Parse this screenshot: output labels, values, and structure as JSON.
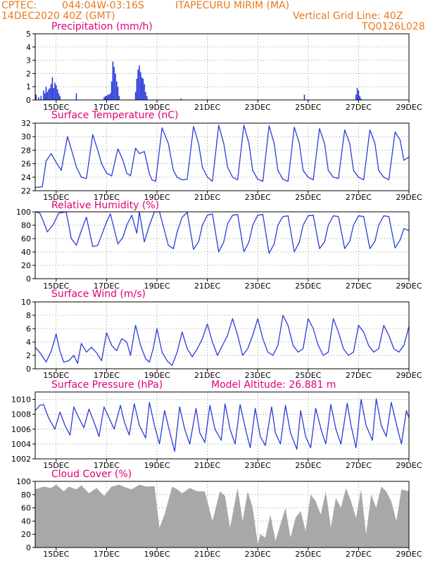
{
  "header": {
    "source": "CPTEC:",
    "coords": "044:04W-03:16S",
    "station": "ITAPECURU MIRIM (MA)",
    "datetime": "14DEC2020 40Z (GMT)",
    "grid_note": "Vertical Grid Line: 40Z",
    "model": "TQ0126L028"
  },
  "colors": {
    "header": "#e87a1e",
    "title": "#e0007a",
    "series": "#2a3cd9",
    "cloud": "#a8a8a8",
    "grid": "#9a9a9a"
  },
  "x_axis": {
    "start_day": 14.167,
    "end_day": 29.0,
    "ticks": [
      {
        "day": 15,
        "label": "15DEC"
      },
      {
        "day": 17,
        "label": "17DEC"
      },
      {
        "day": 19,
        "label": "19DEC"
      },
      {
        "day": 21,
        "label": "21DEC"
      },
      {
        "day": 23,
        "label": "23DEC"
      },
      {
        "day": 25,
        "label": "25DEC"
      },
      {
        "day": 27,
        "label": "27DEC"
      },
      {
        "day": 29,
        "label": "29DEC"
      }
    ]
  },
  "chart_data": [
    {
      "id": "precip",
      "type": "bar",
      "title": "Precipitation (mm/h)",
      "ylim": [
        0,
        5
      ],
      "yticks": [
        0,
        1,
        2,
        3,
        4,
        5
      ],
      "grid": true,
      "x": [
        14.2,
        14.3,
        14.4,
        14.5,
        14.55,
        14.6,
        14.65,
        14.7,
        14.75,
        14.8,
        14.85,
        14.9,
        14.95,
        15.0,
        15.05,
        15.1,
        15.15,
        15.8,
        16.9,
        16.95,
        17.0,
        17.05,
        17.1,
        17.15,
        17.2,
        17.25,
        17.3,
        17.35,
        17.4,
        17.45,
        17.5,
        18.15,
        18.2,
        18.25,
        18.3,
        18.35,
        18.4,
        18.45,
        18.5,
        18.55,
        18.6,
        19.95,
        24.85,
        26.9,
        26.95,
        27.0,
        27.05,
        27.1
      ],
      "values": [
        0.4,
        0.2,
        0.3,
        0.7,
        0.5,
        1.0,
        0.6,
        0.8,
        0.9,
        1.2,
        1.7,
        0.9,
        1.3,
        1.1,
        0.8,
        0.5,
        0.3,
        0.5,
        0.2,
        0.3,
        0.3,
        0.4,
        0.4,
        0.5,
        1.4,
        2.9,
        2.5,
        2.0,
        1.4,
        1.0,
        0.3,
        0.6,
        1.6,
        2.3,
        2.6,
        2.1,
        1.7,
        1.6,
        1.2,
        0.6,
        0.3,
        0.1,
        0.4,
        0.4,
        0.9,
        0.7,
        0.3,
        0.1
      ]
    },
    {
      "id": "temp",
      "type": "line",
      "title": "Surface Temperature (nC)",
      "ylim": [
        22,
        32
      ],
      "yticks": [
        22,
        24,
        26,
        28,
        30,
        32
      ],
      "grid": true,
      "x": [
        14.17,
        14.3,
        14.45,
        14.6,
        14.8,
        15.0,
        15.2,
        15.45,
        15.65,
        15.8,
        16.0,
        16.2,
        16.45,
        16.65,
        16.8,
        17.0,
        17.2,
        17.45,
        17.65,
        17.8,
        17.95,
        18.15,
        18.3,
        18.5,
        18.7,
        18.8,
        18.95,
        19.2,
        19.45,
        19.65,
        19.8,
        20.0,
        20.2,
        20.45,
        20.65,
        20.8,
        21.0,
        21.2,
        21.45,
        21.65,
        21.8,
        22.0,
        22.2,
        22.45,
        22.65,
        22.8,
        23.0,
        23.2,
        23.45,
        23.65,
        23.8,
        24.0,
        24.2,
        24.45,
        24.65,
        24.8,
        25.0,
        25.2,
        25.45,
        25.65,
        25.8,
        26.0,
        26.2,
        26.45,
        26.65,
        26.8,
        27.0,
        27.2,
        27.45,
        27.65,
        27.8,
        28.0,
        28.2,
        28.45,
        28.65,
        28.8,
        29.0
      ],
      "values": [
        22.5,
        22.5,
        22.6,
        26.4,
        27.5,
        26.2,
        25.0,
        30.0,
        27.5,
        25.5,
        24.0,
        23.8,
        30.3,
        28.0,
        26.0,
        24.6,
        24.2,
        28.2,
        26.5,
        24.6,
        24.2,
        28.3,
        27.5,
        27.8,
        24.5,
        23.6,
        23.4,
        31.3,
        29.0,
        25.0,
        24.0,
        23.6,
        23.7,
        31.5,
        29.0,
        25.5,
        24.0,
        23.4,
        31.7,
        29.0,
        25.5,
        24.0,
        23.6,
        31.7,
        29.0,
        25.0,
        23.7,
        23.4,
        31.6,
        29.0,
        25.0,
        23.7,
        23.4,
        31.4,
        29.0,
        25.0,
        24.0,
        23.6,
        31.2,
        29.0,
        25.0,
        24.0,
        23.8,
        31.0,
        29.0,
        25.0,
        24.0,
        23.6,
        31.0,
        29.0,
        25.0,
        24.0,
        23.6,
        30.7,
        29.5,
        26.5,
        27.0
      ]
    },
    {
      "id": "rh",
      "type": "line",
      "title": "Relative Humidity (%)",
      "ylim": [
        0,
        100
      ],
      "yticks": [
        0,
        20,
        40,
        60,
        80,
        100
      ],
      "grid": true,
      "x": [
        14.17,
        14.35,
        14.5,
        14.65,
        14.9,
        15.1,
        15.4,
        15.6,
        15.8,
        16.0,
        16.2,
        16.45,
        16.65,
        16.8,
        17.0,
        17.15,
        17.45,
        17.65,
        17.8,
        18.0,
        18.2,
        18.3,
        18.5,
        18.7,
        18.9,
        19.1,
        19.45,
        19.65,
        19.8,
        20.0,
        20.2,
        20.45,
        20.65,
        20.8,
        21.0,
        21.2,
        21.45,
        21.65,
        21.8,
        22.0,
        22.2,
        22.45,
        22.65,
        22.8,
        23.0,
        23.2,
        23.45,
        23.65,
        23.8,
        24.0,
        24.2,
        24.45,
        24.65,
        24.8,
        25.0,
        25.2,
        25.45,
        25.65,
        25.8,
        26.0,
        26.2,
        26.45,
        26.65,
        26.8,
        27.0,
        27.2,
        27.45,
        27.65,
        27.8,
        28.0,
        28.2,
        28.45,
        28.65,
        28.8,
        29.0
      ],
      "values": [
        100,
        98,
        85,
        70,
        82,
        98,
        100,
        60,
        50,
        72,
        92,
        48,
        50,
        65,
        85,
        97,
        52,
        62,
        80,
        95,
        68,
        100,
        55,
        80,
        100,
        100,
        50,
        45,
        70,
        92,
        99,
        44,
        55,
        80,
        95,
        97,
        40,
        55,
        82,
        95,
        96,
        40,
        55,
        80,
        95,
        96,
        38,
        52,
        80,
        93,
        94,
        40,
        55,
        80,
        94,
        95,
        45,
        55,
        80,
        94,
        93,
        45,
        56,
        80,
        94,
        93,
        45,
        56,
        80,
        94,
        93,
        46,
        58,
        75,
        72
      ]
    },
    {
      "id": "wind",
      "type": "line",
      "title": "Surface Wind (m/s)",
      "ylim": [
        0,
        10
      ],
      "yticks": [
        0,
        2,
        4,
        6,
        8,
        10
      ],
      "grid": true,
      "x": [
        14.17,
        14.4,
        14.6,
        14.8,
        15.0,
        15.15,
        15.3,
        15.5,
        15.7,
        15.85,
        16.0,
        16.2,
        16.4,
        16.6,
        16.8,
        17.0,
        17.2,
        17.4,
        17.6,
        17.8,
        17.95,
        18.15,
        18.35,
        18.55,
        18.7,
        18.85,
        19.0,
        19.2,
        19.4,
        19.6,
        19.8,
        20.0,
        20.2,
        20.4,
        20.6,
        20.8,
        21.0,
        21.2,
        21.4,
        21.6,
        21.8,
        22.0,
        22.2,
        22.4,
        22.6,
        22.8,
        23.0,
        23.2,
        23.4,
        23.6,
        23.8,
        24.0,
        24.2,
        24.4,
        24.6,
        24.8,
        25.0,
        25.2,
        25.4,
        25.6,
        25.8,
        26.0,
        26.2,
        26.4,
        26.6,
        26.8,
        27.0,
        27.2,
        27.4,
        27.6,
        27.8,
        28.0,
        28.2,
        28.4,
        28.6,
        28.8,
        29.0
      ],
      "values": [
        3.2,
        2.2,
        1.0,
        2.6,
        5.2,
        2.6,
        1.0,
        1.2,
        2.0,
        0.8,
        3.8,
        2.5,
        3.2,
        2.4,
        1.2,
        5.4,
        3.5,
        2.7,
        4.5,
        4.0,
        2.0,
        6.5,
        3.5,
        1.5,
        1.0,
        3.0,
        6.0,
        2.5,
        1.2,
        0.5,
        2.5,
        5.5,
        3.0,
        1.8,
        3.0,
        4.5,
        6.7,
        4.0,
        2.0,
        3.5,
        5.0,
        7.5,
        5.0,
        2.0,
        3.0,
        5.0,
        7.5,
        4.5,
        2.5,
        2.0,
        3.5,
        8.0,
        6.5,
        3.5,
        2.5,
        3.0,
        7.5,
        6.0,
        3.5,
        2.0,
        2.5,
        7.5,
        5.5,
        3.0,
        2.0,
        2.5,
        6.5,
        5.5,
        3.5,
        2.5,
        3.0,
        6.5,
        5.0,
        3.0,
        2.5,
        3.5,
        6.3
      ]
    },
    {
      "id": "pressure",
      "type": "line",
      "title": "Surface Pressure (hPa)",
      "annotation": "Model Altitude: 26.881  m",
      "ylim": [
        1002,
        1011
      ],
      "yticks": [
        1002,
        1004,
        1006,
        1008,
        1010
      ],
      "grid": true,
      "x": [
        14.17,
        14.35,
        14.5,
        14.7,
        14.95,
        15.15,
        15.35,
        15.55,
        15.7,
        15.9,
        16.1,
        16.3,
        16.55,
        16.7,
        16.9,
        17.1,
        17.3,
        17.55,
        17.7,
        17.9,
        18.1,
        18.3,
        18.55,
        18.7,
        18.9,
        19.1,
        19.3,
        19.55,
        19.7,
        19.9,
        20.1,
        20.3,
        20.55,
        20.7,
        20.9,
        21.1,
        21.3,
        21.55,
        21.7,
        21.9,
        22.1,
        22.3,
        22.55,
        22.7,
        22.9,
        23.1,
        23.3,
        23.55,
        23.7,
        23.9,
        24.1,
        24.3,
        24.55,
        24.7,
        24.9,
        25.1,
        25.3,
        25.55,
        25.7,
        25.9,
        26.1,
        26.3,
        26.55,
        26.7,
        26.9,
        27.1,
        27.3,
        27.55,
        27.7,
        27.9,
        28.1,
        28.3,
        28.55,
        28.7,
        28.9,
        29.0
      ],
      "values": [
        1008.5,
        1009.2,
        1009.3,
        1007.5,
        1006.0,
        1008.3,
        1006.5,
        1005.2,
        1009.0,
        1007.5,
        1006.2,
        1008.7,
        1006.5,
        1005.0,
        1009.0,
        1007.5,
        1006.0,
        1009.2,
        1007.0,
        1005.2,
        1009.4,
        1006.5,
        1004.8,
        1009.6,
        1006.5,
        1004.0,
        1008.5,
        1005.0,
        1003.0,
        1009.0,
        1006.0,
        1004.0,
        1008.8,
        1005.5,
        1004.2,
        1009.2,
        1006.0,
        1004.5,
        1009.4,
        1006.0,
        1004.0,
        1009.3,
        1005.5,
        1003.5,
        1008.8,
        1005.0,
        1003.8,
        1009.0,
        1005.5,
        1004.0,
        1009.2,
        1005.5,
        1003.3,
        1008.5,
        1005.0,
        1003.5,
        1008.8,
        1005.5,
        1004.0,
        1009.3,
        1006.0,
        1004.0,
        1009.5,
        1006.5,
        1003.5,
        1010.0,
        1006.5,
        1004.5,
        1010.1,
        1006.5,
        1005.0,
        1009.6,
        1006.0,
        1004.0,
        1008.5,
        1007.5
      ]
    },
    {
      "id": "cloud",
      "type": "area",
      "title": "Cloud Cover (%)",
      "ylim": [
        0,
        100
      ],
      "yticks": [
        0,
        20,
        40,
        60,
        80,
        100
      ],
      "grid": true,
      "x": [
        14.17,
        14.5,
        14.8,
        15.0,
        15.3,
        15.5,
        15.8,
        16.0,
        16.3,
        16.6,
        16.9,
        17.2,
        17.5,
        17.8,
        18.0,
        18.3,
        18.6,
        18.9,
        19.1,
        19.3,
        19.6,
        19.8,
        20.0,
        20.3,
        20.6,
        20.9,
        21.2,
        21.5,
        21.7,
        21.9,
        22.2,
        22.4,
        22.6,
        22.8,
        23.0,
        23.1,
        23.3,
        23.5,
        23.7,
        23.9,
        24.1,
        24.3,
        24.5,
        24.7,
        24.9,
        25.1,
        25.3,
        25.5,
        25.7,
        25.9,
        26.1,
        26.3,
        26.5,
        26.7,
        26.9,
        27.1,
        27.3,
        27.5,
        27.7,
        27.9,
        28.1,
        28.3,
        28.5,
        28.7,
        29.0
      ],
      "values": [
        88,
        92,
        90,
        95,
        85,
        92,
        88,
        94,
        82,
        90,
        78,
        92,
        95,
        90,
        88,
        95,
        92,
        93,
        30,
        50,
        92,
        88,
        82,
        90,
        85,
        85,
        40,
        85,
        78,
        30,
        90,
        40,
        85,
        60,
        5,
        20,
        15,
        50,
        10,
        35,
        60,
        15,
        45,
        55,
        25,
        80,
        70,
        50,
        85,
        30,
        75,
        60,
        90,
        70,
        45,
        88,
        20,
        80,
        60,
        92,
        85,
        70,
        40,
        88,
        85
      ]
    }
  ]
}
